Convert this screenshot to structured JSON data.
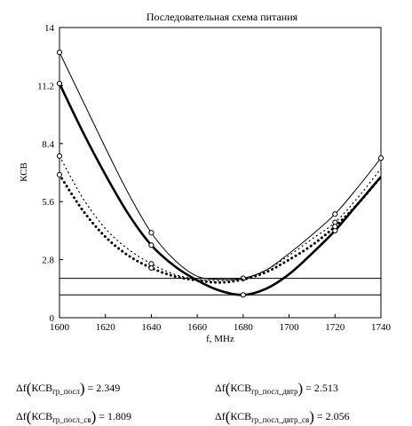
{
  "chart_data": {
    "type": "line",
    "title": "Последовательная схема питания",
    "xlabel": "f, MHz",
    "ylabel": "КСВ",
    "xlim": [
      1600,
      1740
    ],
    "ylim": [
      0,
      14
    ],
    "xticks": [
      1600,
      1620,
      1640,
      1660,
      1680,
      1700,
      1720,
      1740
    ],
    "yticks": [
      0,
      2.8,
      5.6,
      8.4,
      11.2,
      14
    ],
    "grid": false,
    "legend": "none",
    "hlines": [
      1.9,
      1.1
    ],
    "series": [
      {
        "style": "thin-solid",
        "x": [
          1600,
          1610,
          1620,
          1630,
          1640,
          1650,
          1660,
          1670,
          1680,
          1690,
          1700,
          1710,
          1720,
          1730,
          1740
        ],
        "y": [
          12.8,
          10.5,
          8.2,
          6.0,
          4.1,
          2.8,
          2.0,
          1.85,
          1.9,
          2.3,
          3.1,
          4.0,
          5.0,
          6.3,
          7.7
        ],
        "markers_x": [
          1600,
          1640,
          1680,
          1720,
          1740
        ],
        "markers_y": [
          12.8,
          4.1,
          1.9,
          5.0,
          7.7
        ]
      },
      {
        "style": "thick-solid",
        "x": [
          1600,
          1610,
          1620,
          1630,
          1640,
          1650,
          1660,
          1670,
          1680,
          1690,
          1700,
          1710,
          1720,
          1730,
          1740
        ],
        "y": [
          11.3,
          9.0,
          6.9,
          5.0,
          3.5,
          2.5,
          1.8,
          1.3,
          1.1,
          1.4,
          2.1,
          3.1,
          4.2,
          5.5,
          6.8
        ],
        "markers_x": [
          1600,
          1640,
          1680,
          1720
        ],
        "markers_y": [
          11.3,
          3.5,
          1.1,
          4.2
        ]
      },
      {
        "style": "dotted",
        "x": [
          1600,
          1610,
          1620,
          1630,
          1640,
          1650,
          1660,
          1670,
          1680,
          1690,
          1700,
          1710,
          1720,
          1730,
          1740
        ],
        "y": [
          7.8,
          5.8,
          4.3,
          3.3,
          2.6,
          2.1,
          1.85,
          1.8,
          1.9,
          2.3,
          3.0,
          3.8,
          4.6,
          5.8,
          7.2
        ],
        "markers_x": [
          1600,
          1640,
          1680,
          1720
        ],
        "markers_y": [
          7.8,
          2.6,
          1.9,
          4.6
        ]
      },
      {
        "style": "thick-dotted",
        "x": [
          1600,
          1610,
          1620,
          1630,
          1640,
          1650,
          1660,
          1670,
          1680,
          1690,
          1700,
          1710,
          1720,
          1730,
          1740
        ],
        "y": [
          6.9,
          5.2,
          3.9,
          3.0,
          2.4,
          2.0,
          1.8,
          1.7,
          1.85,
          2.2,
          2.8,
          3.5,
          4.4,
          5.5,
          6.8
        ],
        "markers_x": [
          1600,
          1640,
          1720
        ],
        "markers_y": [
          6.9,
          2.4,
          4.4
        ]
      }
    ]
  },
  "results": [
    {
      "fn": "Δf",
      "name": "КСВ",
      "sub": "гр_посл",
      "eq": "= 2.349"
    },
    {
      "fn": "Δf",
      "name": "КСВ",
      "sub": "гр_посл_двтр",
      "eq": "= 2.513"
    },
    {
      "fn": "Δf",
      "name": "КСВ",
      "sub": "гр_посл_св",
      "eq": "= 1.809"
    },
    {
      "fn": "Δf",
      "name": "КСВ",
      "sub": "гр_посл_двтр_св",
      "eq": "= 2.056"
    }
  ]
}
